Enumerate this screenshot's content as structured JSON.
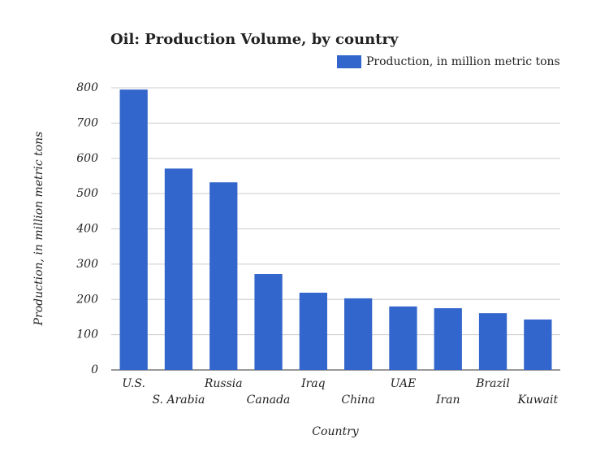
{
  "chart_data": {
    "type": "bar",
    "title": "Oil: Production Volume, by country",
    "x_label": "Country",
    "y_label": "Production, in million metric tons",
    "categories": [
      "U.S.",
      "S. Arabia",
      "Russia",
      "Canada",
      "Iraq",
      "China",
      "UAE",
      "Iran",
      "Brazil",
      "Kuwait"
    ],
    "series": [
      {
        "name": "Production, in million metric tons",
        "color": "#3366cc",
        "values": [
          795,
          571,
          532,
          272,
          219,
          203,
          180,
          175,
          161,
          143
        ]
      }
    ],
    "ylim": [
      0,
      800
    ],
    "yticks": [
      0,
      100,
      200,
      300,
      400,
      500,
      600,
      700,
      800
    ],
    "grid": true,
    "legend": "top-right"
  }
}
